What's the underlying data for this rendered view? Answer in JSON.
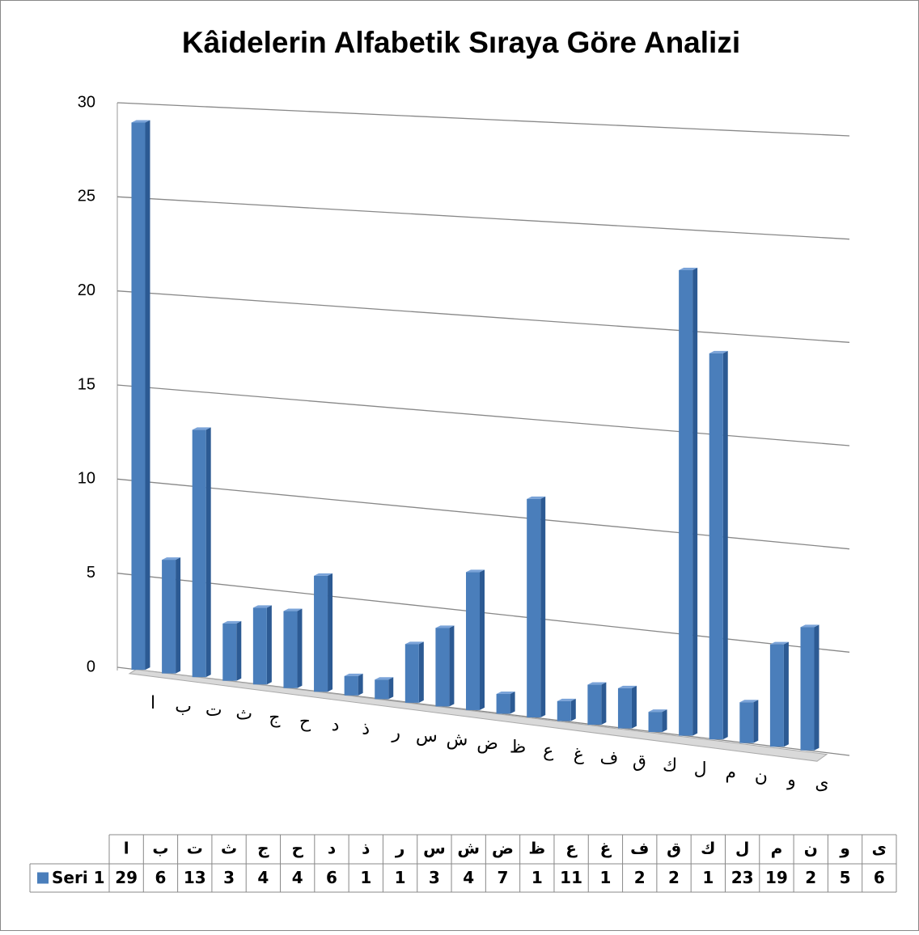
{
  "chart_data": {
    "type": "bar",
    "title": "Kâidelerin Alfabetik Sıraya Göre Analizi",
    "categories": [
      "ا",
      "ب",
      "ت",
      "ث",
      "ج",
      "ح",
      "د",
      "ذ",
      "ر",
      "س",
      "ش",
      "ض",
      "ظ",
      "ع",
      "غ",
      "ف",
      "ق",
      "ك",
      "ل",
      "م",
      "ن",
      "و",
      "ى"
    ],
    "series": [
      {
        "name": "Seri 1",
        "color": "#4a7ebb",
        "values": [
          29,
          6,
          13,
          3,
          4,
          4,
          6,
          1,
          1,
          3,
          4,
          7,
          1,
          11,
          1,
          2,
          2,
          1,
          23,
          19,
          2,
          5,
          6
        ]
      }
    ],
    "ylim": [
      0,
      30
    ],
    "yticks": [
      0,
      5,
      10,
      15,
      20,
      25,
      30
    ],
    "grid": true,
    "data_table": true
  }
}
